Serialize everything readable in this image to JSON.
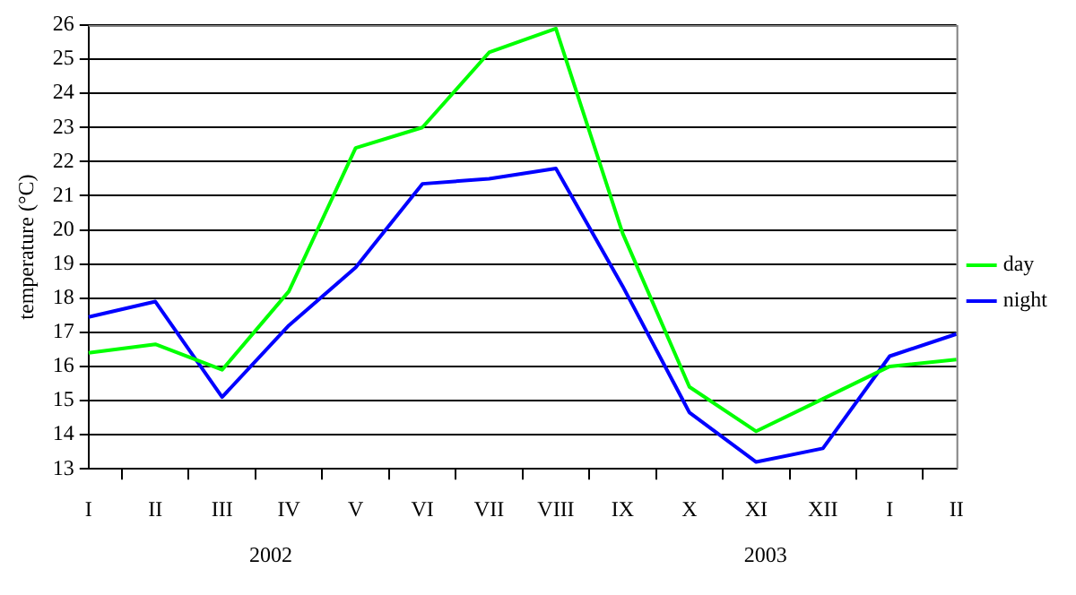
{
  "chart_data": {
    "type": "line",
    "ylabel": "temperature (°C)",
    "categories": [
      "I",
      "II",
      "III",
      "IV",
      "V",
      "VI",
      "VII",
      "VIII",
      "IX",
      "X",
      "XI",
      "XII",
      "I",
      "II"
    ],
    "series": [
      {
        "name": "day",
        "color": "#00ff00",
        "values": [
          16.4,
          16.65,
          15.9,
          18.2,
          22.4,
          23.0,
          25.2,
          25.9,
          19.9,
          15.4,
          14.1,
          15.05,
          16.0,
          16.2
        ]
      },
      {
        "name": "night",
        "color": "#0000ff",
        "values": [
          17.45,
          17.9,
          15.1,
          17.2,
          18.9,
          21.35,
          21.5,
          21.8,
          18.35,
          14.65,
          13.2,
          13.6,
          16.3,
          16.95
        ]
      }
    ],
    "ylim": [
      13,
      26
    ],
    "yticks": [
      13,
      14,
      15,
      16,
      17,
      18,
      19,
      20,
      21,
      22,
      23,
      24,
      25,
      26
    ],
    "grid": "y",
    "legend": "right",
    "marker": "none",
    "annotations": [
      "2002",
      "2003"
    ]
  }
}
